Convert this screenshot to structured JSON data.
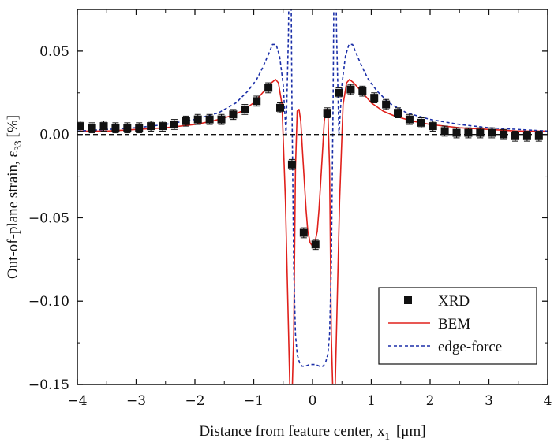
{
  "chart_data": {
    "type": "scatter",
    "title": "",
    "xlabel": "Distance from feature center, x",
    "xlabel_sub": "1",
    "xlabel_unit": "[μm]",
    "ylabel": "Out-of-plane strain, ε",
    "ylabel_sub": "33",
    "ylabel_unit": "[%]",
    "xlim": [
      -4,
      4
    ],
    "ylim": [
      -0.15,
      0.075
    ],
    "xticks": [
      -4,
      -3,
      -2,
      -1,
      0,
      1,
      2,
      3,
      4
    ],
    "xtick_labels": [
      "−4",
      "−3",
      "−2",
      "−1",
      "0",
      "1",
      "2",
      "3",
      "4"
    ],
    "yticks": [
      -0.15,
      -0.1,
      -0.05,
      0.0,
      0.05
    ],
    "ytick_labels": [
      "−0.15",
      "−0.10",
      "−0.05",
      "0.00",
      "0.05"
    ],
    "grid": false,
    "legend_position": "bottom-right",
    "zero_line": true,
    "series": [
      {
        "name": "XRD",
        "kind": "markers",
        "color": "#111111",
        "error": 0.003,
        "x": [
          -3.95,
          -3.75,
          -3.55,
          -3.35,
          -3.15,
          -2.95,
          -2.75,
          -2.55,
          -2.35,
          -2.15,
          -1.95,
          -1.75,
          -1.55,
          -1.35,
          -1.15,
          -0.95,
          -0.75,
          -0.55,
          -0.35,
          -0.15,
          0.05,
          0.25,
          0.45,
          0.65,
          0.85,
          1.05,
          1.25,
          1.45,
          1.65,
          1.85,
          2.05,
          2.25,
          2.45,
          2.65,
          2.85,
          3.05,
          3.25,
          3.45,
          3.65,
          3.85
        ],
        "y": [
          0.005,
          0.004,
          0.005,
          0.004,
          0.004,
          0.004,
          0.005,
          0.005,
          0.006,
          0.008,
          0.009,
          0.009,
          0.009,
          0.012,
          0.015,
          0.02,
          0.028,
          0.016,
          -0.018,
          -0.059,
          -0.066,
          0.013,
          0.025,
          0.027,
          0.026,
          0.022,
          0.018,
          0.013,
          0.009,
          0.007,
          0.005,
          0.002,
          0.001,
          0.001,
          0.001,
          0.001,
          0.0,
          -0.001,
          -0.001,
          -0.001
        ]
      },
      {
        "name": "BEM",
        "kind": "line",
        "color": "#e0201b",
        "dash": "",
        "x": [
          -4.0,
          -3.5,
          -3.0,
          -2.5,
          -2.0,
          -1.7,
          -1.4,
          -1.2,
          -1.0,
          -0.9,
          -0.8,
          -0.7,
          -0.63,
          -0.58,
          -0.52,
          -0.46,
          -0.42,
          -0.38,
          -0.35,
          -0.32,
          -0.29,
          -0.26,
          -0.23,
          -0.2,
          -0.17,
          -0.14,
          -0.11,
          -0.08,
          -0.04,
          0.0,
          0.04,
          0.08,
          0.11,
          0.14,
          0.17,
          0.2,
          0.23,
          0.26,
          0.29,
          0.32,
          0.35,
          0.38,
          0.42,
          0.46,
          0.52,
          0.58,
          0.63,
          0.7,
          0.8,
          0.9,
          1.0,
          1.2,
          1.4,
          1.7,
          2.0,
          2.5,
          3.0,
          3.5,
          4.0
        ],
        "y": [
          0.002,
          0.002,
          0.003,
          0.004,
          0.006,
          0.008,
          0.011,
          0.014,
          0.019,
          0.023,
          0.027,
          0.031,
          0.033,
          0.031,
          0.018,
          -0.04,
          -0.1,
          -0.16,
          -0.16,
          -0.12,
          -0.02,
          0.014,
          0.015,
          0.008,
          -0.01,
          -0.028,
          -0.045,
          -0.058,
          -0.065,
          -0.067,
          -0.065,
          -0.058,
          -0.045,
          -0.028,
          -0.01,
          0.008,
          0.015,
          0.014,
          -0.02,
          -0.12,
          -0.16,
          -0.16,
          -0.1,
          -0.04,
          0.018,
          0.031,
          0.033,
          0.031,
          0.027,
          0.023,
          0.019,
          0.014,
          0.011,
          0.008,
          0.006,
          0.004,
          0.003,
          0.002,
          0.002
        ]
      },
      {
        "name": "edge-force",
        "kind": "line",
        "color": "#1b2fa8",
        "dash": "4,3",
        "x": [
          -4.0,
          -3.5,
          -3.0,
          -2.5,
          -2.0,
          -1.6,
          -1.3,
          -1.1,
          -0.95,
          -0.85,
          -0.75,
          -0.68,
          -0.62,
          -0.56,
          -0.5,
          -0.45,
          -0.41,
          -0.39,
          -0.37,
          -0.35,
          -0.32,
          -0.29,
          -0.26,
          -0.22,
          -0.18,
          -0.12,
          -0.05,
          0.0,
          0.05,
          0.12,
          0.18,
          0.22,
          0.26,
          0.29,
          0.32,
          0.35,
          0.37,
          0.39,
          0.41,
          0.45,
          0.5,
          0.56,
          0.62,
          0.68,
          0.75,
          0.85,
          0.95,
          1.1,
          1.3,
          1.6,
          2.0,
          2.5,
          3.0,
          3.5,
          4.0
        ],
        "y": [
          0.002,
          0.003,
          0.004,
          0.006,
          0.009,
          0.013,
          0.019,
          0.026,
          0.033,
          0.04,
          0.048,
          0.054,
          0.054,
          0.047,
          0.03,
          0.0,
          0.06,
          0.12,
          0.12,
          0.02,
          -0.08,
          -0.12,
          -0.132,
          -0.137,
          -0.139,
          -0.139,
          -0.138,
          -0.138,
          -0.138,
          -0.139,
          -0.139,
          -0.137,
          -0.132,
          -0.12,
          -0.08,
          0.02,
          0.12,
          0.12,
          0.06,
          0.0,
          0.03,
          0.047,
          0.054,
          0.054,
          0.048,
          0.04,
          0.033,
          0.026,
          0.019,
          0.013,
          0.009,
          0.006,
          0.004,
          0.003,
          0.002
        ]
      }
    ]
  }
}
